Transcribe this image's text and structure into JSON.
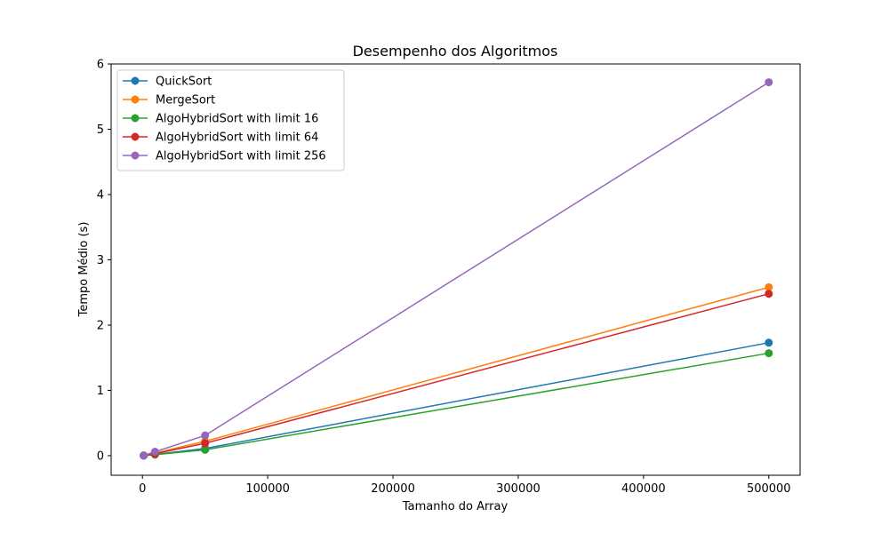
{
  "chart_data": {
    "type": "line",
    "title": "Desempenho dos Algoritmos",
    "xlabel": "Tamanho do Array",
    "ylabel": "Tempo Médio (s)",
    "xlim": [
      -25000,
      525000
    ],
    "ylim": [
      -0.3,
      6.0
    ],
    "xticks": [
      0,
      100000,
      200000,
      300000,
      400000,
      500000
    ],
    "yticks": [
      0,
      1,
      2,
      3,
      4,
      5,
      6
    ],
    "xtick_labels": [
      "0",
      "100000",
      "200000",
      "300000",
      "400000",
      "500000"
    ],
    "ytick_labels": [
      "0",
      "1",
      "2",
      "3",
      "4",
      "5",
      "6"
    ],
    "grid": false,
    "legend_position": "upper-left",
    "x": [
      1000,
      10000,
      50000,
      500000
    ],
    "series": [
      {
        "name": "QuickSort",
        "color": "#1f77b4",
        "values": [
          0.001,
          0.02,
          0.11,
          1.73
        ]
      },
      {
        "name": "MergeSort",
        "color": "#ff7f0e",
        "values": [
          0.002,
          0.04,
          0.22,
          2.58
        ]
      },
      {
        "name": "AlgoHybridSort with limit 16",
        "color": "#2ca02c",
        "values": [
          0.001,
          0.015,
          0.09,
          1.57
        ]
      },
      {
        "name": "AlgoHybridSort with limit 64",
        "color": "#d62728",
        "values": [
          0.002,
          0.03,
          0.19,
          2.48
        ]
      },
      {
        "name": "AlgoHybridSort with limit 256",
        "color": "#9467bd",
        "values": [
          0.003,
          0.06,
          0.31,
          5.72
        ]
      }
    ]
  }
}
